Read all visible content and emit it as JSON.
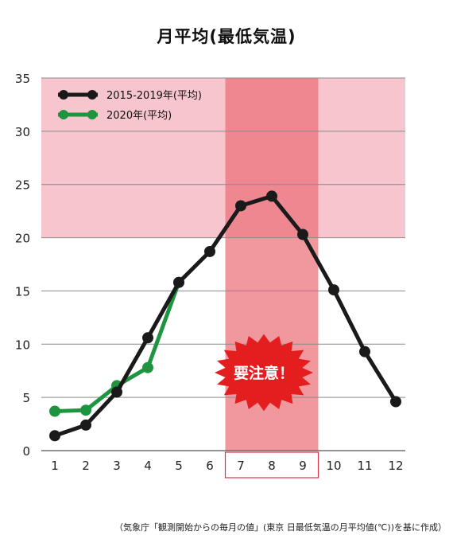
{
  "chart_data": {
    "type": "line",
    "title": "月平均(最低気温)",
    "categories": [
      1,
      2,
      3,
      4,
      5,
      6,
      7,
      8,
      9,
      10,
      11,
      12
    ],
    "ylim": [
      0,
      35
    ],
    "yticks": [
      0,
      5,
      10,
      15,
      20,
      25,
      30,
      35
    ],
    "grid": true,
    "legend_position": "top-left",
    "series": [
      {
        "name": "2015-2019年(平均)",
        "color": "#1a1a1a",
        "x": [
          1,
          2,
          3,
          4,
          5,
          6,
          7,
          8,
          9,
          10,
          11,
          12
        ],
        "values": [
          1.4,
          2.4,
          5.5,
          10.6,
          15.8,
          18.7,
          23.0,
          23.9,
          20.3,
          15.1,
          9.3,
          4.6
        ]
      },
      {
        "name": "2020年(平均)",
        "color": "#1e9440",
        "x": [
          1,
          2,
          3,
          4,
          5
        ],
        "values": [
          3.7,
          3.8,
          6.1,
          7.8,
          15.8
        ]
      }
    ],
    "bands": {
      "horizontal": {
        "from": 20,
        "to": 35,
        "color": "#f6c5cd"
      },
      "vertical": {
        "from_month": 7,
        "to_month": 9,
        "color": "#ec6f78"
      }
    },
    "highlight_months": [
      7,
      8,
      9
    ],
    "annotation": "要注意！",
    "annotation_color": "#e41e1e",
    "source_note": "（気象庁「観測開始からの毎月の値」(東京 日最低気温の月平均値(℃))を基に作成）"
  }
}
